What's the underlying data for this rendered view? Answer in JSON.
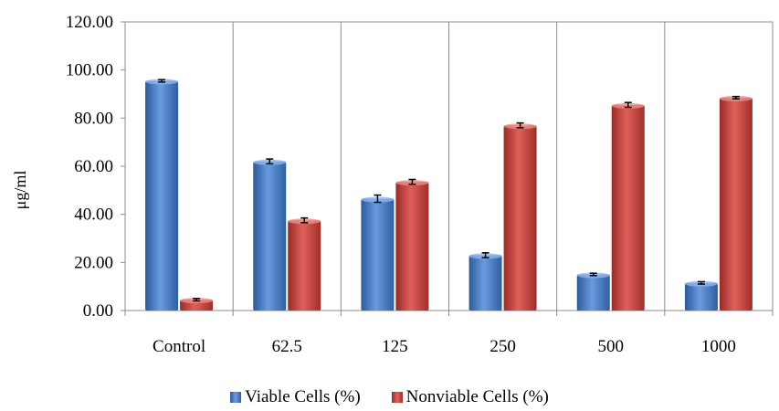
{
  "chart_data": {
    "type": "bar",
    "title": "",
    "xlabel": "",
    "ylabel": "μg/ml",
    "ylim": [
      0,
      120
    ],
    "yticks": [
      "0.00",
      "20.00",
      "40.00",
      "60.00",
      "80.00",
      "100.00",
      "120.00"
    ],
    "categories": [
      "Control",
      "62.5",
      "125",
      "250",
      "500",
      "1000"
    ],
    "series": [
      {
        "name": "Viable Cells (%)",
        "color": "#4F81BD",
        "values": [
          95.5,
          62.0,
          46.5,
          23.0,
          15.0,
          11.5
        ],
        "errors": [
          0.5,
          1.0,
          1.5,
          1.0,
          0.5,
          0.5
        ]
      },
      {
        "name": "Nonviable Cells (%)",
        "color": "#C0504D",
        "values": [
          4.5,
          37.5,
          53.5,
          77.0,
          85.5,
          88.5
        ],
        "errors": [
          0.5,
          1.0,
          1.0,
          1.0,
          1.0,
          0.5
        ]
      }
    ],
    "grid": "vertical",
    "error_bars": true,
    "legend_position": "bottom"
  }
}
